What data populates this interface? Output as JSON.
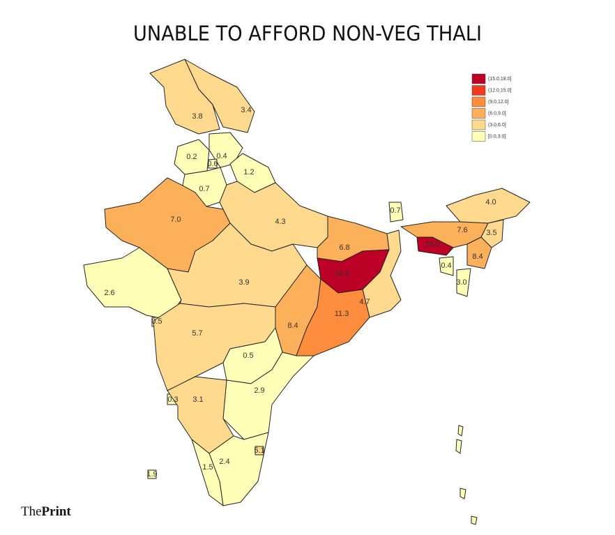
{
  "title": "UNABLE TO AFFORD NON-VEG THALI",
  "brand": {
    "pre": "The",
    "main": "Print"
  },
  "legend": [
    {
      "label": "(15.0,18.0]",
      "lo": 15,
      "hi": 18,
      "color": "#bd0026"
    },
    {
      "label": "(12.0,15.0]",
      "lo": 12,
      "hi": 15,
      "color": "#f03b20"
    },
    {
      "label": "(9.0,12.0]",
      "lo": 9,
      "hi": 12,
      "color": "#fd8d3c"
    },
    {
      "label": "(6.0,9.0]",
      "lo": 6,
      "hi": 9,
      "color": "#fdb05a"
    },
    {
      "label": "(3.0,6.0]",
      "lo": 3,
      "hi": 6,
      "color": "#fed98e"
    },
    {
      "label": "[0.0,3.0]",
      "lo": 0,
      "hi": 3,
      "color": "#ffffb8"
    }
  ],
  "regions": [
    {
      "value": 3.4,
      "label": "3.4"
    },
    {
      "value": 3.8,
      "label": "3.8"
    },
    {
      "value": 0.2,
      "label": "0.2"
    },
    {
      "value": 0.4,
      "label": "0.4"
    },
    {
      "value": 0.6,
      "label": "0.6"
    },
    {
      "value": 1.2,
      "label": "1.2"
    },
    {
      "value": 0.7,
      "label": "0.7"
    },
    {
      "value": 7.0,
      "label": "7.0"
    },
    {
      "value": 4.3,
      "label": "4.3"
    },
    {
      "value": 2.6,
      "label": "2.6"
    },
    {
      "value": 0.5,
      "label": "0.5"
    },
    {
      "value": 3.9,
      "label": "3.9"
    },
    {
      "value": 6.8,
      "label": "6.8"
    },
    {
      "value": 18.0,
      "label": "18.0"
    },
    {
      "value": 4.7,
      "label": "4.7"
    },
    {
      "value": 0.7,
      "label": "0.7"
    },
    {
      "value": 8.4,
      "label": "8.4"
    },
    {
      "value": 11.3,
      "label": "11.3"
    },
    {
      "value": 5.7,
      "label": "5.7"
    },
    {
      "value": 0.5,
      "label": "0.5"
    },
    {
      "value": 2.9,
      "label": "2.9"
    },
    {
      "value": 0.3,
      "label": "0.3"
    },
    {
      "value": 3.1,
      "label": "3.1"
    },
    {
      "value": 2.4,
      "label": "2.4"
    },
    {
      "value": 1.5,
      "label": "1.5"
    },
    {
      "value": 5.1,
      "label": "5.1"
    },
    {
      "value": 1.9,
      "label": "1.9"
    },
    {
      "value": 4.0,
      "label": "4.0"
    },
    {
      "value": 7.6,
      "label": "7.6"
    },
    {
      "value": 3.5,
      "label": "3.5"
    },
    {
      "value": 16.0,
      "label": "16.0"
    },
    {
      "value": 8.4,
      "label": "8.4"
    },
    {
      "value": 0.4,
      "label": "0.4"
    },
    {
      "value": 3.0,
      "label": "3.0"
    }
  ]
}
